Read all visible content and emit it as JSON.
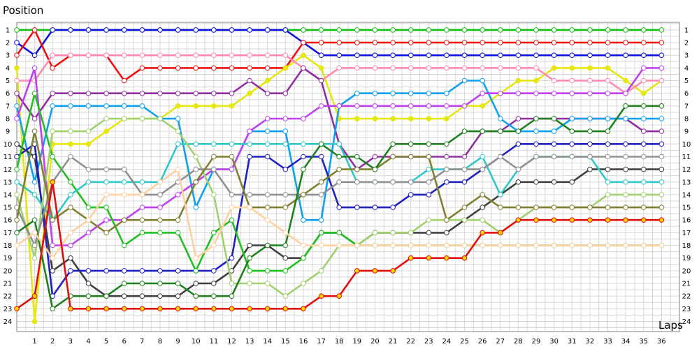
{
  "chart_data": {
    "type": "line",
    "title": "",
    "xlabel": "Laps",
    "ylabel": "Position",
    "x_ticks": [
      1,
      2,
      3,
      4,
      5,
      6,
      7,
      8,
      9,
      10,
      11,
      12,
      13,
      14,
      15,
      16,
      17,
      18,
      19,
      20,
      21,
      22,
      23,
      24,
      25,
      26,
      27,
      28,
      29,
      30,
      31,
      32,
      33,
      34,
      35,
      36
    ],
    "y_ticks": [
      1,
      2,
      3,
      4,
      5,
      6,
      7,
      8,
      9,
      10,
      11,
      12,
      13,
      14,
      15,
      16,
      17,
      18,
      19,
      20,
      21,
      22,
      23,
      24
    ],
    "xlim": [
      0,
      37
    ],
    "ylim": [
      24.8,
      0.4
    ],
    "y_inverted": true,
    "grid": true,
    "legend": "none",
    "series": [
      {
        "color": "#10c010",
        "marker": "#ffffff",
        "values": [
          1,
          1,
          1,
          1,
          1,
          1,
          1,
          1,
          1,
          1,
          1,
          1,
          1,
          1,
          1,
          1,
          1,
          1,
          1,
          1,
          1,
          1,
          1,
          1,
          1,
          1,
          1,
          1,
          1,
          1,
          1,
          1,
          1,
          1,
          1,
          1,
          1
        ]
      },
      {
        "color": "#1010e0",
        "marker": "#ffffff",
        "values": [
          2,
          3,
          1,
          1,
          1,
          1,
          1,
          1,
          1,
          1,
          1,
          1,
          1,
          1,
          1,
          1,
          2,
          3,
          3,
          3,
          3,
          3,
          3,
          3,
          3,
          3,
          3,
          3,
          3,
          3,
          3,
          3,
          3,
          3,
          3,
          3,
          3
        ]
      },
      {
        "color": "#ee1010",
        "marker": "#ffffff",
        "values": [
          3,
          1,
          4,
          3,
          3,
          3,
          5,
          4,
          4,
          4,
          4,
          4,
          4,
          4,
          4,
          4,
          2,
          2,
          2,
          2,
          2,
          2,
          2,
          2,
          2,
          2,
          2,
          2,
          2,
          2,
          2,
          2,
          2,
          2,
          2,
          2,
          2
        ]
      },
      {
        "color": "#e6e610",
        "marker": "#e6e610",
        "values": [
          4,
          24,
          10,
          10,
          10,
          9,
          8,
          8,
          8,
          7,
          7,
          7,
          7,
          6,
          5,
          4,
          3,
          4,
          8,
          8,
          8,
          8,
          8,
          8,
          8,
          7,
          7,
          6,
          5,
          5,
          4,
          4,
          4,
          4,
          5,
          6,
          5
        ]
      },
      {
        "color": "#ff8ab0",
        "marker": "#ffffff",
        "values": [
          5,
          5,
          3,
          3,
          3,
          3,
          3,
          3,
          3,
          3,
          3,
          3,
          3,
          3,
          3,
          3,
          4,
          5,
          4,
          4,
          4,
          4,
          4,
          4,
          4,
          4,
          4,
          4,
          4,
          4,
          5,
          5,
          5,
          5,
          6,
          5,
          5
        ]
      },
      {
        "color": "#9030a0",
        "marker": "#ffffff",
        "values": [
          6,
          8,
          6,
          6,
          6,
          6,
          6,
          6,
          6,
          6,
          6,
          6,
          6,
          5,
          6,
          6,
          4,
          5,
          10,
          12,
          11,
          11,
          11,
          11,
          11,
          11,
          9,
          9,
          8,
          8,
          8,
          8,
          8,
          8,
          8,
          9,
          9
        ]
      },
      {
        "color": "#10a0f0",
        "marker": "#ffffff",
        "values": [
          7,
          13,
          7,
          7,
          7,
          7,
          7,
          7,
          8,
          8,
          15,
          12,
          12,
          9,
          9,
          9,
          16,
          16,
          7,
          6,
          6,
          6,
          6,
          6,
          6,
          5,
          5,
          8,
          9,
          9,
          9,
          8,
          8,
          8,
          8,
          8,
          8
        ]
      },
      {
        "color": "#c040f0",
        "marker": "#ffffff",
        "values": [
          8,
          4,
          18,
          18,
          17,
          16,
          16,
          15,
          15,
          14,
          13,
          12,
          12,
          9,
          8,
          8,
          8,
          7,
          7,
          7,
          7,
          7,
          7,
          7,
          7,
          7,
          6,
          6,
          6,
          6,
          6,
          6,
          6,
          6,
          6,
          4,
          4
        ]
      },
      {
        "color": "#404040",
        "marker": "#ffffff",
        "values": [
          10,
          11,
          20,
          19,
          21,
          22,
          22,
          22,
          22,
          22,
          21,
          21,
          20,
          18,
          18,
          19,
          19,
          17,
          17,
          18,
          17,
          17,
          17,
          17,
          17,
          16,
          15,
          14,
          13,
          13,
          13,
          13,
          12,
          12,
          12,
          12,
          12
        ]
      },
      {
        "color": "#2020c0",
        "marker": "#ffffff",
        "values": [
          11,
          10,
          22,
          20,
          20,
          20,
          20,
          20,
          20,
          20,
          20,
          20,
          19,
          11,
          11,
          12,
          11,
          11,
          15,
          15,
          15,
          15,
          14,
          14,
          13,
          13,
          12,
          11,
          10,
          10,
          10,
          10,
          10,
          10,
          10,
          10,
          10
        ]
      },
      {
        "color": "#20c020",
        "marker": "#ffffff",
        "values": [
          12,
          6,
          11,
          13,
          15,
          15,
          18,
          17,
          17,
          17,
          20,
          17,
          16,
          20,
          20,
          20,
          19,
          17,
          17,
          18,
          18,
          18,
          18,
          18,
          18,
          18,
          18,
          18,
          18,
          18,
          18,
          18,
          18,
          18,
          18,
          18,
          18
        ]
      },
      {
        "color": "#30c8c8",
        "marker": "#ffffff",
        "values": [
          13,
          14,
          16,
          14,
          13,
          13,
          13,
          13,
          13,
          10,
          10,
          10,
          10,
          10,
          10,
          10,
          10,
          10,
          10,
          13,
          13,
          13,
          13,
          12,
          12,
          12,
          11,
          14,
          12,
          11,
          11,
          11,
          11,
          13,
          13,
          13,
          13
        ]
      },
      {
        "color": "#a0d070",
        "marker": "#ffffff",
        "values": [
          14,
          19,
          9,
          9,
          9,
          8,
          8,
          8,
          8,
          9,
          11,
          14,
          21,
          21,
          21,
          22,
          21,
          20,
          18,
          18,
          17,
          17,
          17,
          16,
          16,
          16,
          16,
          17,
          16,
          15,
          15,
          15,
          15,
          14,
          14,
          14,
          14
        ]
      },
      {
        "color": "#909090",
        "marker": "#ffffff",
        "values": [
          15,
          18,
          13,
          11,
          12,
          12,
          12,
          14,
          14,
          13,
          12,
          12,
          14,
          14,
          14,
          14,
          14,
          14,
          13,
          13,
          13,
          13,
          13,
          13,
          12,
          12,
          12,
          11,
          12,
          11,
          11,
          11,
          11,
          11,
          11,
          11,
          11
        ]
      },
      {
        "color": "#808030",
        "marker": "#ffffff",
        "values": [
          16,
          9,
          16,
          15,
          16,
          17,
          16,
          16,
          16,
          16,
          13,
          11,
          11,
          15,
          15,
          15,
          14,
          13,
          12,
          12,
          12,
          11,
          11,
          11,
          16,
          15,
          14,
          15,
          15,
          15,
          15,
          15,
          15,
          15,
          15,
          15,
          15
        ]
      },
      {
        "color": "#208020",
        "marker": "#ffffff",
        "values": [
          17,
          16,
          23,
          22,
          22,
          22,
          21,
          21,
          21,
          21,
          22,
          22,
          22,
          19,
          18,
          18,
          12,
          10,
          11,
          11,
          12,
          10,
          10,
          10,
          10,
          9,
          9,
          9,
          9,
          8,
          8,
          9,
          9,
          9,
          7,
          7,
          7
        ]
      },
      {
        "color": "#ffd0a0",
        "marker": "#ffffff",
        "values": [
          18,
          17,
          19,
          17,
          16,
          14,
          14,
          14,
          13,
          12,
          19,
          18,
          15,
          15,
          16,
          17,
          18,
          18,
          18,
          18,
          18,
          18,
          18,
          18,
          18,
          18,
          18,
          18,
          18,
          18,
          18,
          18,
          18,
          18,
          18,
          18,
          18
        ]
      },
      {
        "color": "#e01010",
        "marker": "#ffd200",
        "values": [
          23,
          22,
          13,
          23,
          23,
          23,
          23,
          23,
          23,
          23,
          23,
          23,
          23,
          23,
          23,
          23,
          23,
          22,
          22,
          20,
          20,
          20,
          19,
          19,
          19,
          19,
          17,
          17,
          16,
          16,
          16,
          16,
          16,
          16,
          16,
          16,
          16
        ]
      }
    ]
  }
}
